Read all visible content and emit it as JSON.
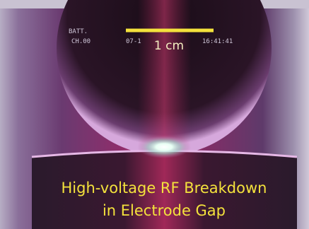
{
  "overlay": {
    "battery": "BATT.",
    "channel": "CH.00",
    "date": "07-1",
    "time": "16:41:41"
  },
  "scale_bar": {
    "label": "1 cm"
  },
  "caption": {
    "lines": [
      "High-voltage RF Breakdown",
      "in Electrode Gap"
    ]
  }
}
